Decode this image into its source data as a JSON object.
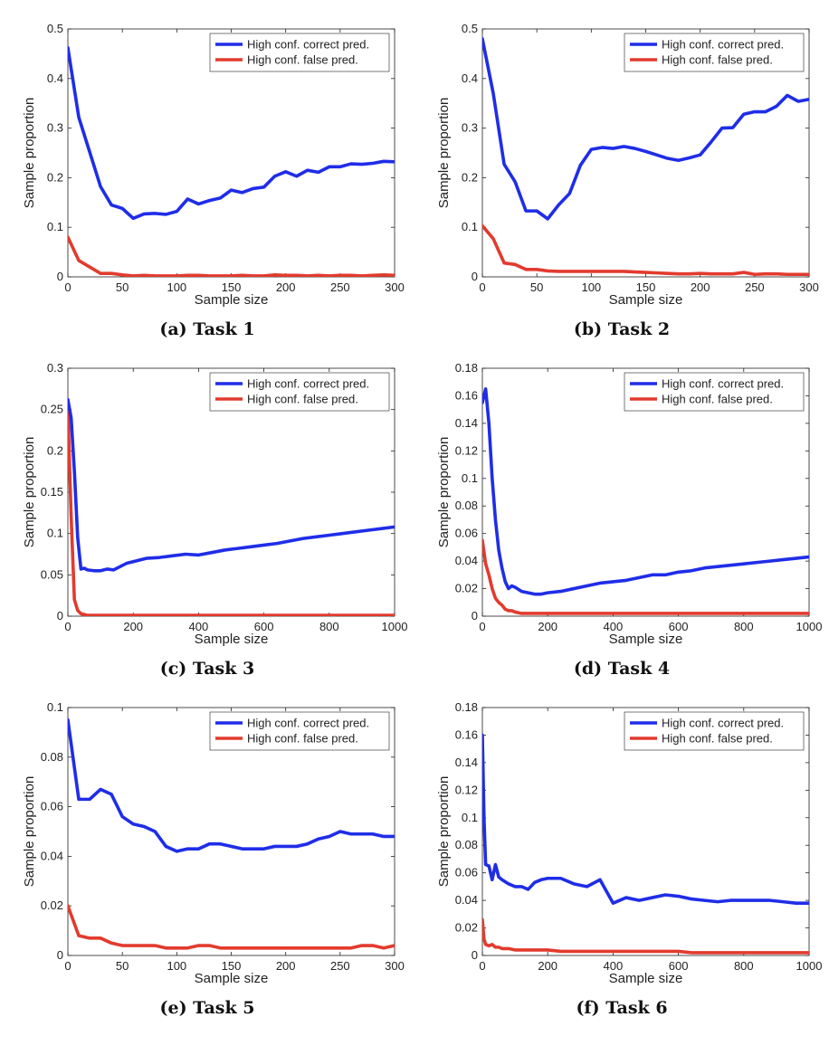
{
  "chart_data": [
    {
      "type": "line",
      "caption": "(a) Task 1",
      "xlabel": "Sample size",
      "ylabel": "Sample proportion",
      "xlim": [
        0,
        300
      ],
      "ylim": [
        0,
        0.5
      ],
      "xticks": [
        "0",
        "50",
        "100",
        "150",
        "200",
        "250",
        "300"
      ],
      "yticks": [
        "0",
        "0.1",
        "0.2",
        "0.3",
        "0.4",
        "0.5"
      ],
      "legend": "top-right",
      "x": [
        0,
        10,
        20,
        30,
        40,
        50,
        60,
        70,
        80,
        90,
        100,
        110,
        120,
        130,
        140,
        150,
        160,
        170,
        180,
        190,
        200,
        210,
        220,
        230,
        240,
        250,
        260,
        270,
        280,
        290,
        300
      ],
      "series": [
        {
          "name": "High conf. correct pred.",
          "color": "#1f2de8",
          "values": [
            0.462,
            0.322,
            0.252,
            0.182,
            0.145,
            0.138,
            0.118,
            0.127,
            0.128,
            0.126,
            0.132,
            0.157,
            0.147,
            0.154,
            0.159,
            0.175,
            0.17,
            0.178,
            0.181,
            0.203,
            0.212,
            0.203,
            0.215,
            0.211,
            0.222,
            0.222,
            0.228,
            0.227,
            0.229,
            0.233,
            0.232
          ]
        },
        {
          "name": "High conf. false pred.",
          "color": "#e23b2e",
          "values": [
            0.08,
            0.033,
            0.02,
            0.007,
            0.007,
            0.004,
            0.002,
            0.003,
            0.002,
            0.002,
            0.002,
            0.003,
            0.003,
            0.002,
            0.002,
            0.002,
            0.003,
            0.002,
            0.002,
            0.004,
            0.003,
            0.003,
            0.002,
            0.003,
            0.002,
            0.003,
            0.003,
            0.002,
            0.003,
            0.004,
            0.003
          ]
        }
      ]
    },
    {
      "type": "line",
      "caption": "(b) Task 2",
      "xlabel": "Sample size",
      "ylabel": "Sample proportion",
      "xlim": [
        0,
        300
      ],
      "ylim": [
        0,
        0.5
      ],
      "xticks": [
        "0",
        "50",
        "100",
        "150",
        "200",
        "250",
        "300"
      ],
      "yticks": [
        "0",
        "0.1",
        "0.2",
        "0.3",
        "0.4",
        "0.5"
      ],
      "legend": "top-right",
      "x": [
        0,
        10,
        20,
        30,
        40,
        50,
        60,
        70,
        80,
        90,
        100,
        110,
        120,
        130,
        140,
        150,
        160,
        170,
        180,
        190,
        200,
        210,
        220,
        230,
        240,
        250,
        260,
        270,
        280,
        290,
        300
      ],
      "series": [
        {
          "name": "High conf. correct pred.",
          "color": "#1f2de8",
          "values": [
            0.48,
            0.37,
            0.227,
            0.192,
            0.133,
            0.133,
            0.117,
            0.145,
            0.168,
            0.225,
            0.257,
            0.261,
            0.259,
            0.263,
            0.259,
            0.253,
            0.246,
            0.239,
            0.235,
            0.24,
            0.246,
            0.272,
            0.3,
            0.301,
            0.328,
            0.333,
            0.333,
            0.344,
            0.366,
            0.354,
            0.358
          ]
        },
        {
          "name": "High conf. false pred.",
          "color": "#e23b2e",
          "values": [
            0.103,
            0.077,
            0.028,
            0.025,
            0.015,
            0.015,
            0.012,
            0.011,
            0.011,
            0.011,
            0.011,
            0.011,
            0.011,
            0.011,
            0.01,
            0.009,
            0.008,
            0.007,
            0.006,
            0.006,
            0.007,
            0.006,
            0.006,
            0.006,
            0.009,
            0.005,
            0.006,
            0.006,
            0.005,
            0.005,
            0.005
          ]
        }
      ]
    },
    {
      "type": "line",
      "caption": "(c) Task 3",
      "xlabel": "Sample size",
      "ylabel": "Sample proportion",
      "xlim": [
        0,
        1000
      ],
      "ylim": [
        0,
        0.3
      ],
      "xticks": [
        "0",
        "200",
        "400",
        "600",
        "800",
        "1000"
      ],
      "yticks": [
        "0",
        "0.05",
        "0.1",
        "0.15",
        "0.2",
        "0.25",
        "0.3"
      ],
      "legend": "top-right",
      "x": [
        0,
        10,
        20,
        30,
        40,
        50,
        60,
        80,
        100,
        120,
        140,
        160,
        180,
        200,
        240,
        280,
        320,
        360,
        400,
        440,
        480,
        520,
        560,
        600,
        640,
        680,
        720,
        760,
        800,
        840,
        880,
        920,
        960,
        1000
      ],
      "series": [
        {
          "name": "High conf. correct pred.",
          "color": "#1f2de8",
          "values": [
            0.262,
            0.24,
            0.175,
            0.095,
            0.057,
            0.058,
            0.056,
            0.055,
            0.055,
            0.057,
            0.056,
            0.06,
            0.064,
            0.066,
            0.07,
            0.071,
            0.073,
            0.075,
            0.074,
            0.077,
            0.08,
            0.082,
            0.084,
            0.086,
            0.088,
            0.091,
            0.094,
            0.096,
            0.098,
            0.1,
            0.102,
            0.104,
            0.106,
            0.108
          ]
        },
        {
          "name": "High conf. false pred.",
          "color": "#e23b2e",
          "values": [
            0.25,
            0.12,
            0.02,
            0.007,
            0.003,
            0.002,
            0.001,
            0.001,
            0.001,
            0.001,
            0.001,
            0.001,
            0.001,
            0.001,
            0.001,
            0.001,
            0.001,
            0.001,
            0.001,
            0.001,
            0.001,
            0.001,
            0.001,
            0.001,
            0.001,
            0.001,
            0.001,
            0.001,
            0.001,
            0.001,
            0.001,
            0.001,
            0.001,
            0.001
          ]
        }
      ]
    },
    {
      "type": "line",
      "caption": "(d) Task 4",
      "xlabel": "Sample size",
      "ylabel": "Sample proportion",
      "xlim": [
        0,
        1000
      ],
      "ylim": [
        0,
        0.18
      ],
      "xticks": [
        "0",
        "200",
        "400",
        "600",
        "800",
        "1000"
      ],
      "yticks": [
        "0",
        "0.02",
        "0.04",
        "0.06",
        "0.08",
        "0.1",
        "0.12",
        "0.14",
        "0.16",
        "0.18"
      ],
      "legend": "top-right",
      "x": [
        0,
        10,
        20,
        30,
        40,
        50,
        60,
        70,
        80,
        90,
        100,
        120,
        140,
        160,
        180,
        200,
        240,
        280,
        320,
        360,
        400,
        440,
        480,
        520,
        560,
        600,
        640,
        680,
        720,
        760,
        800,
        840,
        880,
        920,
        960,
        1000
      ],
      "series": [
        {
          "name": "High conf. correct pred.",
          "color": "#1f2de8",
          "values": [
            0.155,
            0.165,
            0.14,
            0.1,
            0.07,
            0.048,
            0.035,
            0.025,
            0.02,
            0.022,
            0.021,
            0.018,
            0.017,
            0.016,
            0.016,
            0.017,
            0.018,
            0.02,
            0.022,
            0.024,
            0.025,
            0.026,
            0.028,
            0.03,
            0.03,
            0.032,
            0.033,
            0.035,
            0.036,
            0.037,
            0.038,
            0.039,
            0.04,
            0.041,
            0.042,
            0.043
          ]
        },
        {
          "name": "High conf. false pred.",
          "color": "#e23b2e",
          "values": [
            0.055,
            0.038,
            0.03,
            0.02,
            0.013,
            0.01,
            0.008,
            0.005,
            0.004,
            0.004,
            0.003,
            0.002,
            0.002,
            0.002,
            0.002,
            0.002,
            0.002,
            0.002,
            0.002,
            0.002,
            0.002,
            0.002,
            0.002,
            0.002,
            0.002,
            0.002,
            0.002,
            0.002,
            0.002,
            0.002,
            0.002,
            0.002,
            0.002,
            0.002,
            0.002,
            0.002
          ]
        }
      ]
    },
    {
      "type": "line",
      "caption": "(e) Task 5",
      "xlabel": "Sample size",
      "ylabel": "Sample proportion",
      "xlim": [
        0,
        300
      ],
      "ylim": [
        0,
        0.1
      ],
      "xticks": [
        "0",
        "50",
        "100",
        "150",
        "200",
        "250",
        "300"
      ],
      "yticks": [
        "0",
        "0.02",
        "0.04",
        "0.06",
        "0.08",
        "0.1"
      ],
      "legend": "top-right",
      "x": [
        0,
        10,
        20,
        30,
        40,
        50,
        60,
        70,
        80,
        90,
        100,
        110,
        120,
        130,
        140,
        150,
        160,
        170,
        180,
        190,
        200,
        210,
        220,
        230,
        240,
        250,
        260,
        270,
        280,
        290,
        300
      ],
      "series": [
        {
          "name": "High conf. correct pred.",
          "color": "#1f2de8",
          "values": [
            0.095,
            0.063,
            0.063,
            0.067,
            0.065,
            0.056,
            0.053,
            0.052,
            0.05,
            0.044,
            0.042,
            0.043,
            0.043,
            0.045,
            0.045,
            0.044,
            0.043,
            0.043,
            0.043,
            0.044,
            0.044,
            0.044,
            0.045,
            0.047,
            0.048,
            0.05,
            0.049,
            0.049,
            0.049,
            0.048,
            0.048
          ]
        },
        {
          "name": "High conf. false pred.",
          "color": "#e23b2e",
          "values": [
            0.02,
            0.008,
            0.007,
            0.007,
            0.005,
            0.004,
            0.004,
            0.004,
            0.004,
            0.003,
            0.003,
            0.003,
            0.004,
            0.004,
            0.003,
            0.003,
            0.003,
            0.003,
            0.003,
            0.003,
            0.003,
            0.003,
            0.003,
            0.003,
            0.003,
            0.003,
            0.003,
            0.004,
            0.004,
            0.003,
            0.004
          ]
        }
      ]
    },
    {
      "type": "line",
      "caption": "(f) Task 6",
      "xlabel": "Sample size",
      "ylabel": "Sample proportion",
      "xlim": [
        0,
        1000
      ],
      "ylim": [
        0,
        0.18
      ],
      "xticks": [
        "0",
        "200",
        "400",
        "600",
        "800",
        "1000"
      ],
      "yticks": [
        "0",
        "0.02",
        "0.04",
        "0.06",
        "0.08",
        "0.1",
        "0.12",
        "0.14",
        "0.16",
        "0.18"
      ],
      "legend": "top-right",
      "x": [
        0,
        5,
        10,
        20,
        30,
        40,
        50,
        60,
        80,
        100,
        120,
        140,
        160,
        180,
        200,
        240,
        280,
        320,
        360,
        400,
        440,
        480,
        520,
        560,
        600,
        640,
        680,
        720,
        760,
        800,
        840,
        880,
        920,
        960,
        1000
      ],
      "series": [
        {
          "name": "High conf. correct pred.",
          "color": "#1f2de8",
          "values": [
            0.16,
            0.1,
            0.066,
            0.065,
            0.055,
            0.066,
            0.057,
            0.055,
            0.052,
            0.05,
            0.05,
            0.048,
            0.053,
            0.055,
            0.056,
            0.056,
            0.052,
            0.05,
            0.055,
            0.038,
            0.042,
            0.04,
            0.042,
            0.044,
            0.043,
            0.041,
            0.04,
            0.039,
            0.04,
            0.04,
            0.04,
            0.04,
            0.039,
            0.038,
            0.038
          ]
        },
        {
          "name": "High conf. false pred.",
          "color": "#e23b2e",
          "values": [
            0.026,
            0.012,
            0.008,
            0.007,
            0.008,
            0.006,
            0.006,
            0.005,
            0.005,
            0.004,
            0.004,
            0.004,
            0.004,
            0.004,
            0.004,
            0.003,
            0.003,
            0.003,
            0.003,
            0.003,
            0.003,
            0.003,
            0.003,
            0.003,
            0.003,
            0.002,
            0.002,
            0.002,
            0.002,
            0.002,
            0.002,
            0.002,
            0.002,
            0.002,
            0.002
          ]
        }
      ]
    }
  ]
}
